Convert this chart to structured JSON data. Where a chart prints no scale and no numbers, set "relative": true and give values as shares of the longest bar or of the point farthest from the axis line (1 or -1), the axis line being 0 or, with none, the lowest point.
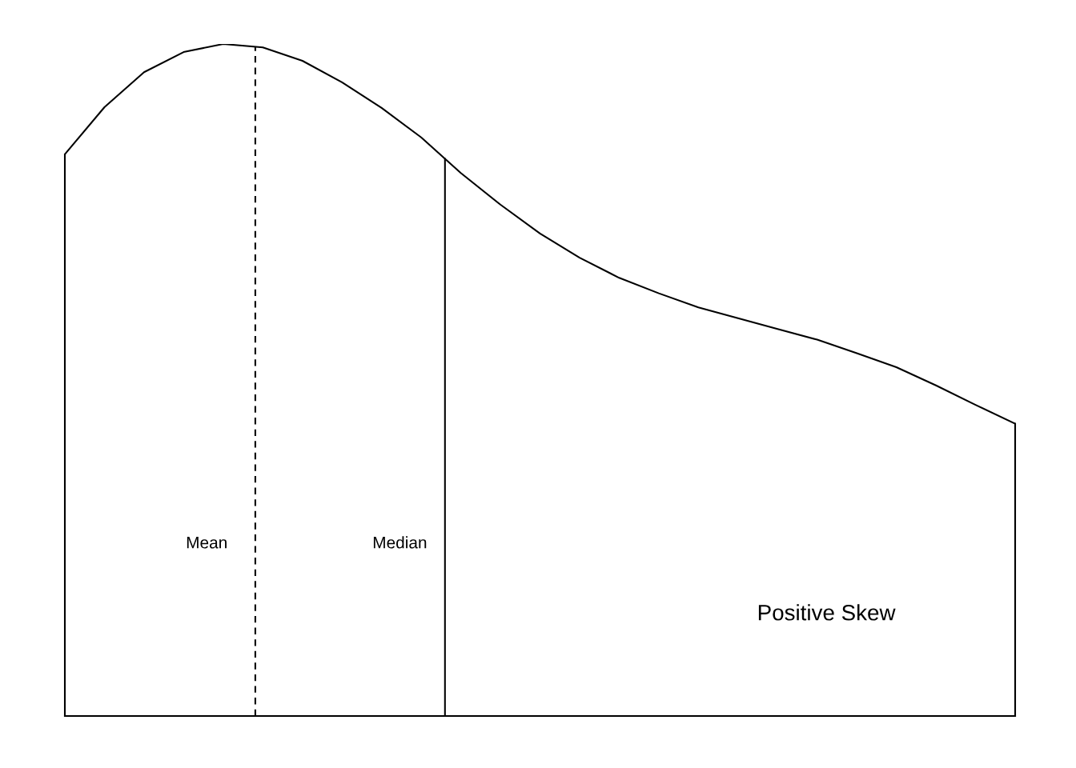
{
  "chart_data": {
    "type": "line",
    "relative": true,
    "categories": [
      null,
      null,
      null,
      null,
      null,
      null,
      null,
      null,
      null,
      null,
      null,
      null,
      null,
      null,
      null,
      null,
      null,
      null,
      null,
      null,
      null,
      null,
      null,
      null,
      null
    ],
    "series": [
      {
        "color": "#000000",
        "values": [
          0.836,
          0.906,
          0.958,
          0.988,
          1,
          0.995,
          0.975,
          0.943,
          0.905,
          0.861,
          0.808,
          0.761,
          0.718,
          0.682,
          0.652,
          0.629,
          0.608,
          0.592,
          0.576,
          0.56,
          0.54,
          0.519,
          0.492,
          0.463,
          0.435
        ]
      }
    ],
    "annotations": [
      "Mean",
      "Median",
      "Positive Skew"
    ]
  }
}
